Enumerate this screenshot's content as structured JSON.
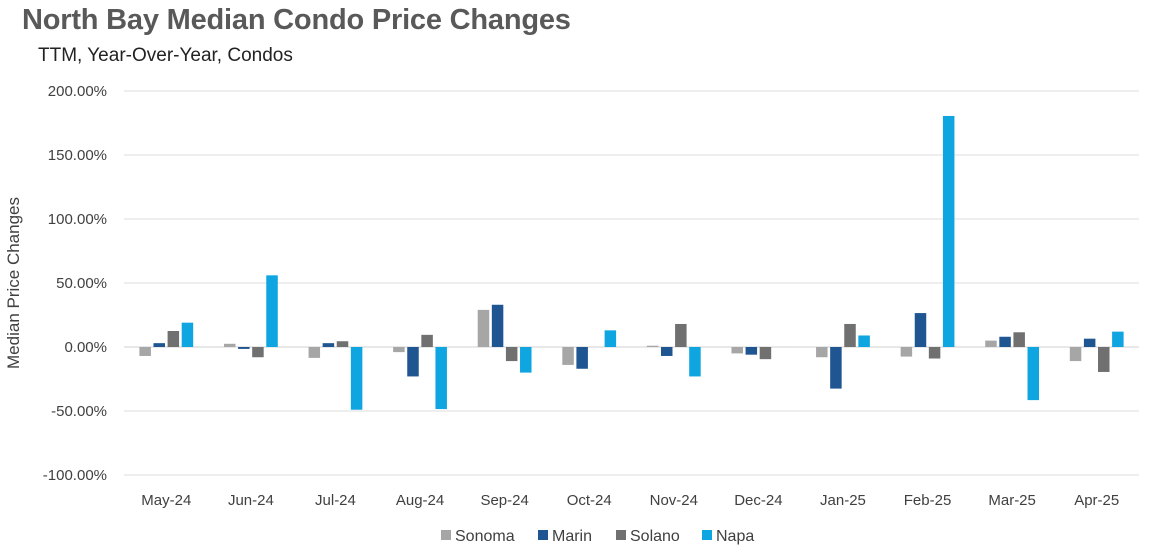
{
  "chart_data": {
    "type": "bar",
    "title": "North Bay Median Condo Price Changes",
    "subtitle": "TTM, Year-Over-Year,  Condos",
    "xlabel": "",
    "ylabel": "Median Price Changes",
    "ylim": [
      -100,
      200
    ],
    "yticks": [
      200,
      150,
      100,
      50,
      0,
      -50,
      -100
    ],
    "ytick_labels": [
      "200.00%",
      "150.00%",
      "100.00%",
      "50.00%",
      "0.00%",
      "-50.00%",
      "-100.00%"
    ],
    "grid": true,
    "legend_position": "bottom",
    "categories": [
      "May-24",
      "Jun-24",
      "Jul-24",
      "Aug-24",
      "Sep-24",
      "Oct-24",
      "Nov-24",
      "Dec-24",
      "Jan-25",
      "Feb-25",
      "Mar-25",
      "Apr-25"
    ],
    "series": [
      {
        "name": "Sonoma",
        "color": "#a6a6a6",
        "values": [
          -7,
          2.5,
          -8.5,
          -4,
          29,
          -14,
          1,
          -5,
          -8,
          -7.5,
          5,
          -11
        ]
      },
      {
        "name": "Marin",
        "color": "#1f5591",
        "values": [
          3,
          -1.5,
          3,
          -23,
          33,
          -17,
          -7,
          -6,
          -32.5,
          26.5,
          8,
          6.5
        ]
      },
      {
        "name": "Solano",
        "color": "#707070",
        "values": [
          12.5,
          -8,
          4.5,
          9.5,
          -11,
          0,
          18,
          -9.5,
          18,
          -9,
          11.5,
          -19.5
        ]
      },
      {
        "name": "Napa",
        "color": "#0ea5e0",
        "values": [
          19,
          56,
          -49,
          -48.5,
          -20,
          13,
          -23,
          0,
          9,
          180.5,
          -41.5,
          12
        ]
      }
    ]
  }
}
